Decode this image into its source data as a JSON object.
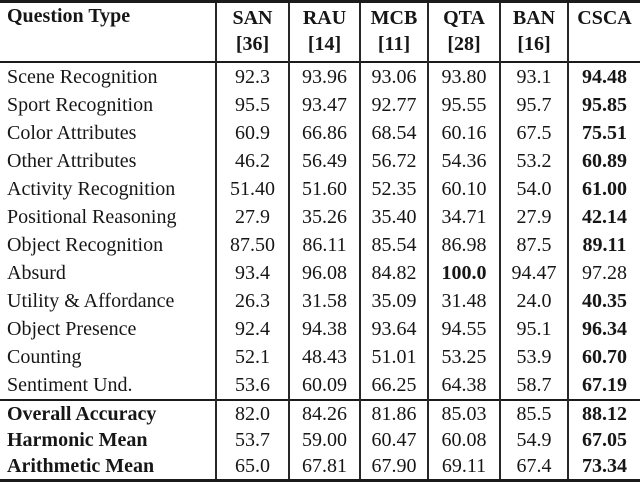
{
  "colors": {
    "background": "#ffffff",
    "text": "#161616",
    "rule": "#1b1b1b"
  },
  "table": {
    "header": {
      "question_type": "Question Type",
      "models": [
        {
          "name": "SAN",
          "cite": "[36]"
        },
        {
          "name": "RAU",
          "cite": "[14]"
        },
        {
          "name": "MCB",
          "cite": "[11]"
        },
        {
          "name": "QTA",
          "cite": "[28]"
        },
        {
          "name": "BAN",
          "cite": "[16]"
        },
        {
          "name": "CSCA",
          "cite": ""
        }
      ]
    },
    "rows": [
      {
        "label": "Scene Recognition",
        "values": [
          "92.3",
          "93.96",
          "93.06",
          "93.80",
          "93.1",
          "94.48"
        ],
        "bold_cols": [
          5
        ]
      },
      {
        "label": "Sport Recognition",
        "values": [
          "95.5",
          "93.47",
          "92.77",
          "95.55",
          "95.7",
          "95.85"
        ],
        "bold_cols": [
          5
        ]
      },
      {
        "label": "Color Attributes",
        "values": [
          "60.9",
          "66.86",
          "68.54",
          "60.16",
          "67.5",
          "75.51"
        ],
        "bold_cols": [
          5
        ]
      },
      {
        "label": "Other Attributes",
        "values": [
          "46.2",
          "56.49",
          "56.72",
          "54.36",
          "53.2",
          "60.89"
        ],
        "bold_cols": [
          5
        ]
      },
      {
        "label": "Activity Recognition",
        "values": [
          "51.40",
          "51.60",
          "52.35",
          "60.10",
          "54.0",
          "61.00"
        ],
        "bold_cols": [
          5
        ]
      },
      {
        "label": "Positional Reasoning",
        "values": [
          "27.9",
          "35.26",
          "35.40",
          "34.71",
          "27.9",
          "42.14"
        ],
        "bold_cols": [
          5
        ]
      },
      {
        "label": "Object Recognition",
        "values": [
          "87.50",
          "86.11",
          "85.54",
          "86.98",
          "87.5",
          "89.11"
        ],
        "bold_cols": [
          5
        ]
      },
      {
        "label": "Absurd",
        "values": [
          "93.4",
          "96.08",
          "84.82",
          "100.0",
          "94.47",
          "97.28"
        ],
        "bold_cols": [
          3
        ]
      },
      {
        "label": "Utility & Affordance",
        "values": [
          "26.3",
          "31.58",
          "35.09",
          "31.48",
          "24.0",
          "40.35"
        ],
        "bold_cols": [
          5
        ]
      },
      {
        "label": "Object Presence",
        "values": [
          "92.4",
          "94.38",
          "93.64",
          "94.55",
          "95.1",
          "96.34"
        ],
        "bold_cols": [
          5
        ]
      },
      {
        "label": "Counting",
        "values": [
          "52.1",
          "48.43",
          "51.01",
          "53.25",
          "53.9",
          "60.70"
        ],
        "bold_cols": [
          5
        ]
      },
      {
        "label": "Sentiment Und.",
        "values": [
          "53.6",
          "60.09",
          "66.25",
          "64.38",
          "58.7",
          "67.19"
        ],
        "bold_cols": [
          5
        ]
      }
    ],
    "summary_rows": [
      {
        "label": "Overall Accuracy",
        "values": [
          "82.0",
          "84.26",
          "81.86",
          "85.03",
          "85.5",
          "88.12"
        ],
        "bold_cols": [
          5
        ]
      },
      {
        "label": "Harmonic Mean",
        "values": [
          "53.7",
          "59.00",
          "60.47",
          "60.08",
          "54.9",
          "67.05"
        ],
        "bold_cols": [
          5
        ]
      },
      {
        "label": "Arithmetic Mean",
        "values": [
          "65.0",
          "67.81",
          "67.90",
          "69.11",
          "67.4",
          "73.34"
        ],
        "bold_cols": [
          5
        ]
      }
    ]
  }
}
